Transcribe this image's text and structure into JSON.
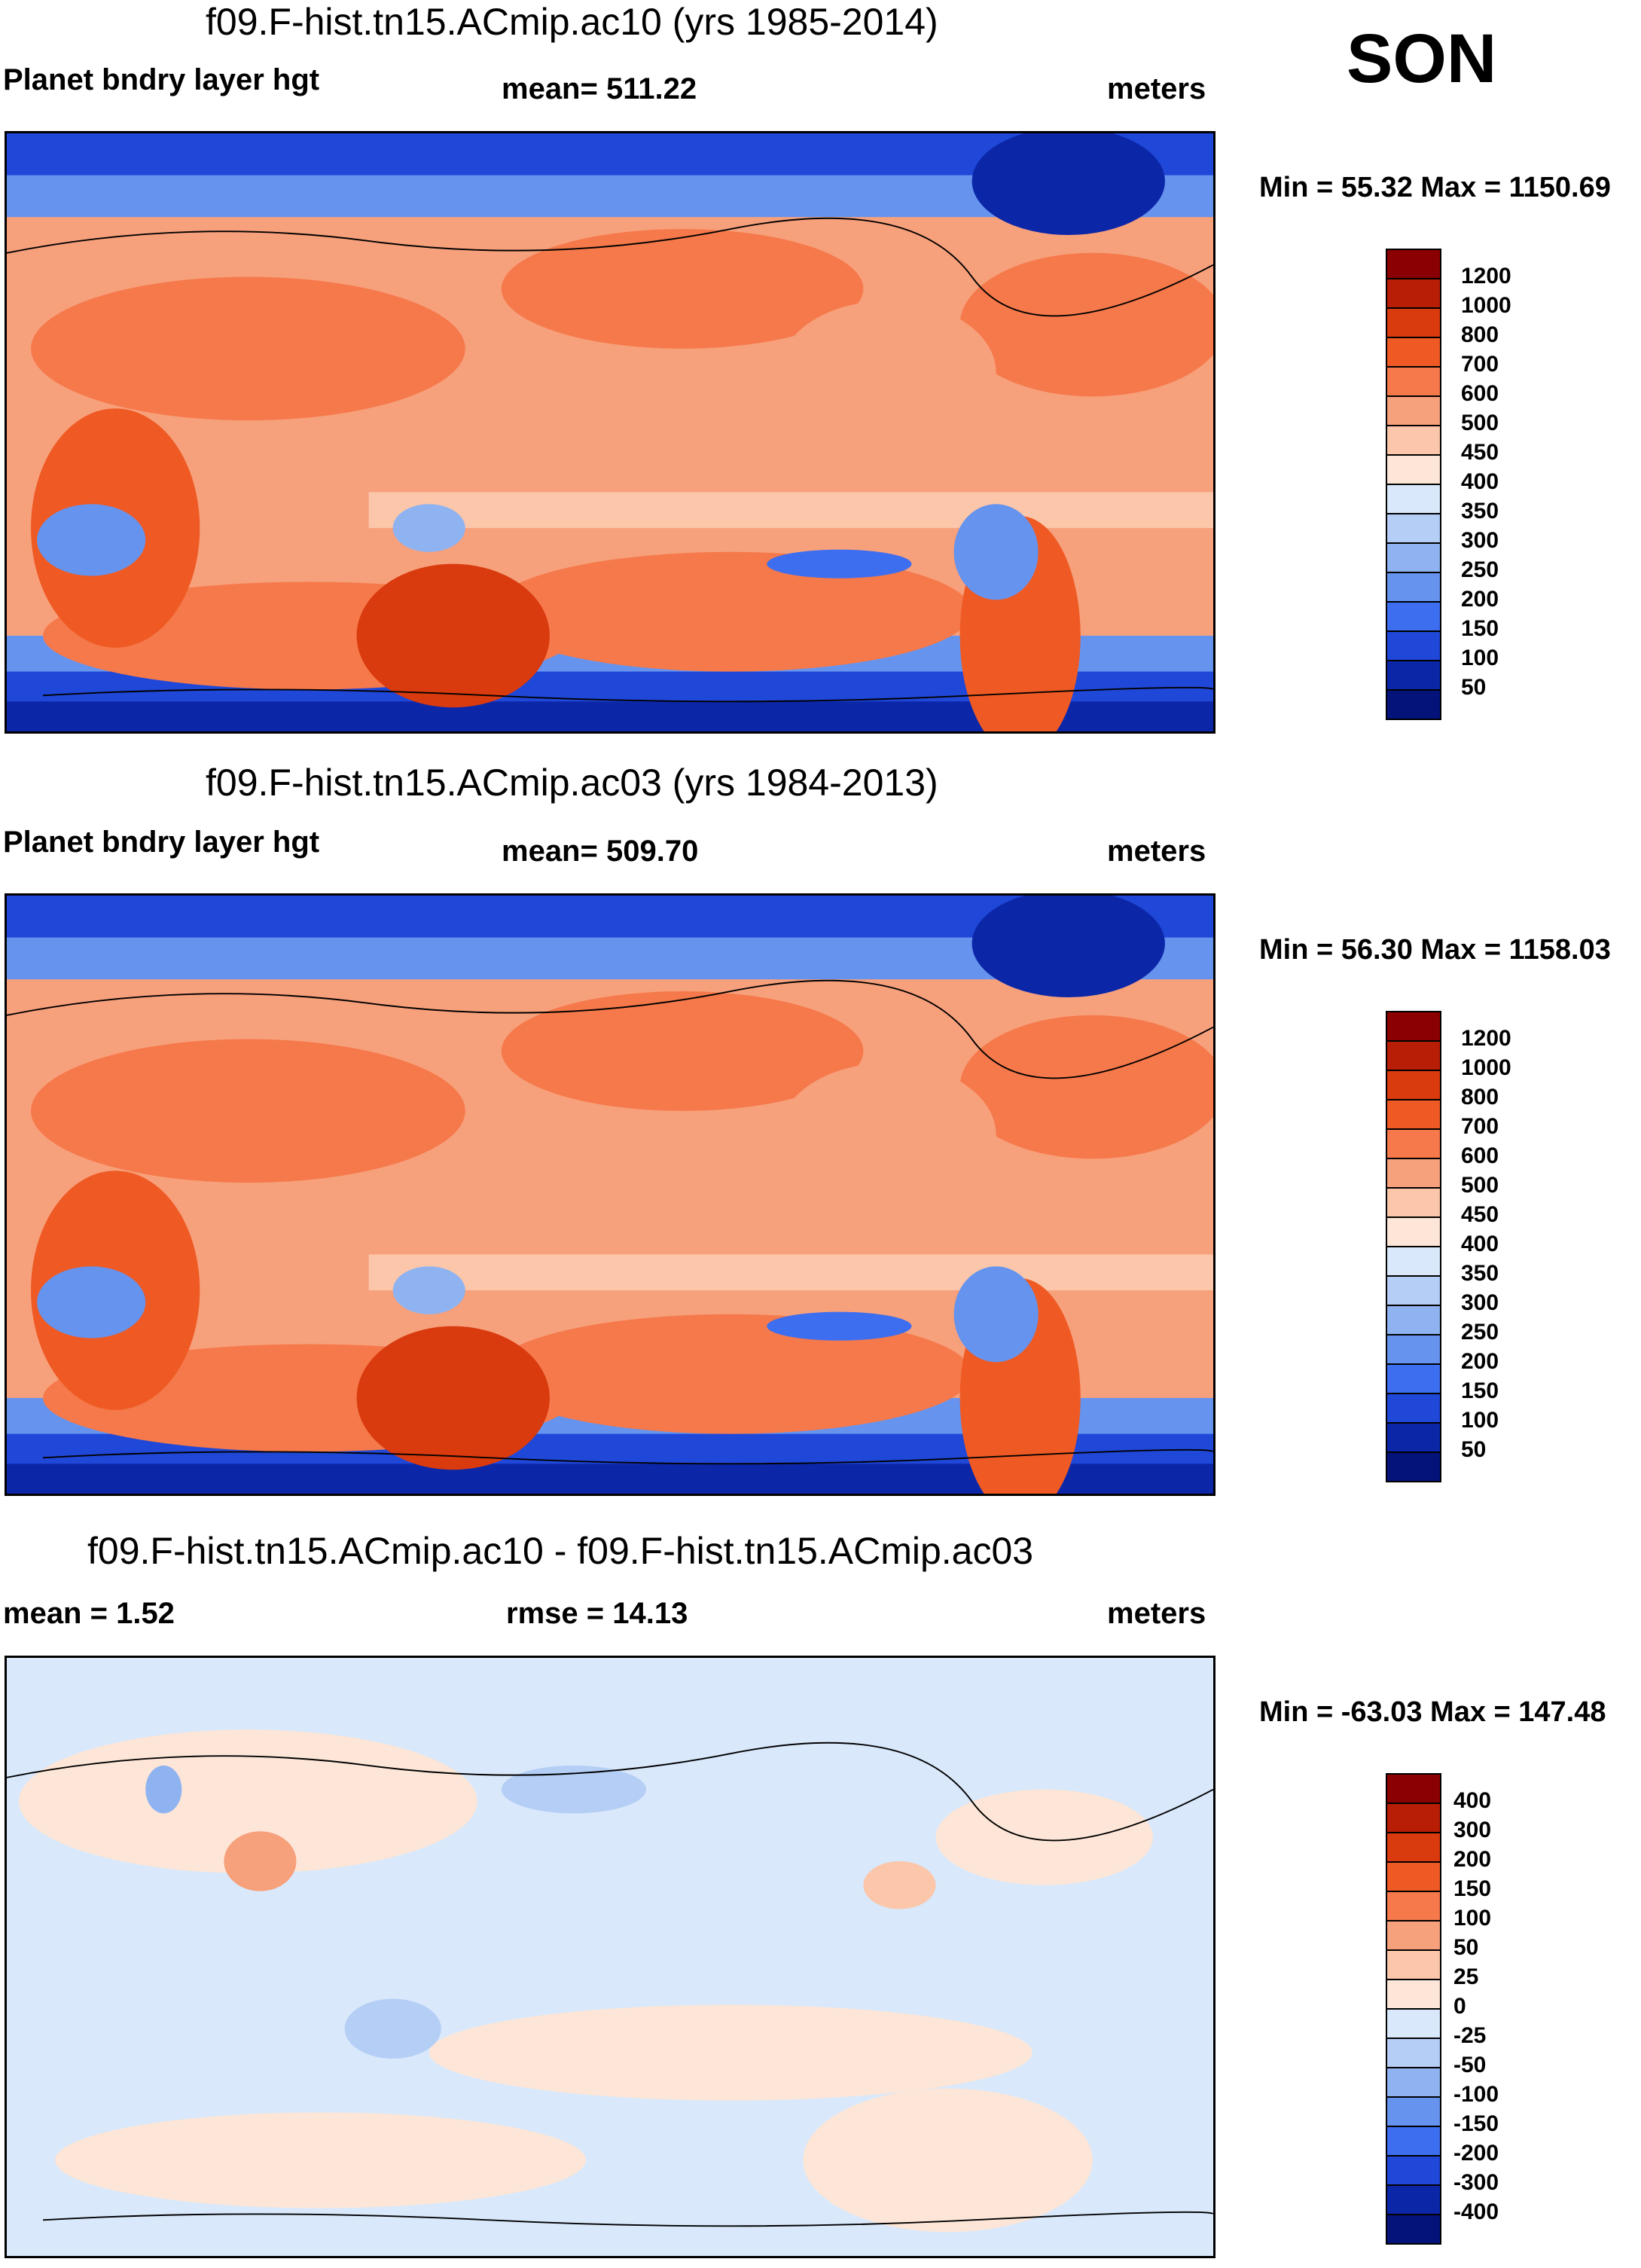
{
  "season": "SON",
  "panels": [
    {
      "title": "f09.F-hist.tn15.ACmip.ac10 (yrs 1985-2014)",
      "left_label": "Planet bndry layer hgt",
      "center_label": "mean= 511.22",
      "units": "meters",
      "minmax": "Min =  55.32 Max = 1150.69",
      "colorbar": {
        "labels": [
          "1200",
          "1000",
          "800",
          "700",
          "600",
          "500",
          "450",
          "400",
          "350",
          "300",
          "250",
          "200",
          "150",
          "100",
          "50"
        ],
        "colors": [
          "#8b0000",
          "#b81d05",
          "#d93a0e",
          "#ef5a24",
          "#f5794a",
          "#f7a07c",
          "#fbc6a9",
          "#fde6d7",
          "#d9e8fa",
          "#b4cef5",
          "#8fb3f1",
          "#6593ee",
          "#3e6ef0",
          "#1f47d8",
          "#0b27a8",
          "#04137a"
        ]
      },
      "stats": {
        "mean": 511.22,
        "min": 55.32,
        "max": 1150.69
      }
    },
    {
      "title": "f09.F-hist.tn15.ACmip.ac03 (yrs 1984-2013)",
      "left_label": "Planet bndry layer hgt",
      "center_label": "mean= 509.70",
      "units": "meters",
      "minmax": "Min =  56.30 Max = 1158.03",
      "colorbar": {
        "labels": [
          "1200",
          "1000",
          "800",
          "700",
          "600",
          "500",
          "450",
          "400",
          "350",
          "300",
          "250",
          "200",
          "150",
          "100",
          "50"
        ],
        "colors": [
          "#8b0000",
          "#b81d05",
          "#d93a0e",
          "#ef5a24",
          "#f5794a",
          "#f7a07c",
          "#fbc6a9",
          "#fde6d7",
          "#d9e8fa",
          "#b4cef5",
          "#8fb3f1",
          "#6593ee",
          "#3e6ef0",
          "#1f47d8",
          "#0b27a8",
          "#04137a"
        ]
      },
      "stats": {
        "mean": 509.7,
        "min": 56.3,
        "max": 1158.03
      }
    },
    {
      "title": "f09.F-hist.tn15.ACmip.ac10 - f09.F-hist.tn15.ACmip.ac03",
      "left_label": "mean =   1.52",
      "center_label": "rmse =  14.13",
      "units": "meters",
      "minmax": "Min = -63.03 Max = 147.48",
      "colorbar": {
        "labels": [
          "400",
          "300",
          "200",
          "150",
          "100",
          "50",
          "25",
          "0",
          "-25",
          "-50",
          "-100",
          "-150",
          "-200",
          "-300",
          "-400"
        ],
        "colors": [
          "#8b0000",
          "#b81d05",
          "#d93a0e",
          "#ef5a24",
          "#f5794a",
          "#f7a07c",
          "#fbc6a9",
          "#fde6d7",
          "#d9e8fa",
          "#b4cef5",
          "#8fb3f1",
          "#6593ee",
          "#3e6ef0",
          "#1f47d8",
          "#0b27a8",
          "#04137a"
        ]
      },
      "stats": {
        "mean": 1.52,
        "rmse": 14.13,
        "min": -63.03,
        "max": 147.48
      }
    }
  ]
}
